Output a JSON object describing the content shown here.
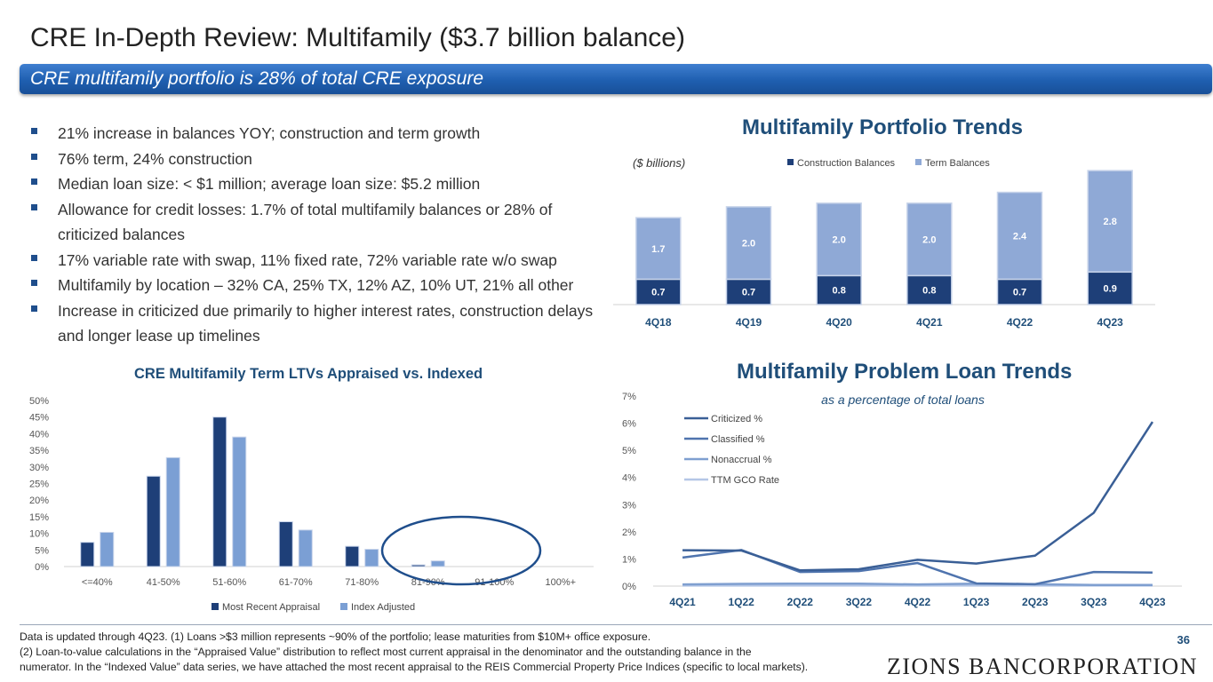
{
  "title": "CRE In-Depth Review: Multifamily ($3.7 billion balance)",
  "banner": "CRE multifamily portfolio is 28% of total CRE exposure",
  "bullets": [
    "21% increase in balances YOY; construction and term growth",
    "76% term, 24% construction",
    "Median loan size: < $1 million; average loan size: $5.2 million",
    "Allowance for credit losses: 1.7% of total multifamily balances or 28% of criticized balances",
    "17% variable rate with swap, 11% fixed rate, 72% variable rate w/o swap",
    "Multifamily by location – 32% CA, 25% TX, 12% AZ, 10% UT, 21% all other",
    "Increase in criticized due primarily to higher interest rates, construction delays and longer lease up timelines"
  ],
  "colors": {
    "navy": "#1f4e79",
    "construction": "#1e3f78",
    "term": "#8fa9d6",
    "banner": "#2a68be",
    "appraisal": "#1e3f78",
    "indexed": "#7b9fd4",
    "criticized": "#3a5f96",
    "classified": "#4f74ae",
    "nonaccrual": "#7f9fd0",
    "gco": "#b4c6e6",
    "circle": "#1f4e8c"
  },
  "chart_data": [
    {
      "id": "portfolio-trends",
      "type": "bar",
      "stacked": true,
      "title": "Multifamily Portfolio Trends",
      "subtitle": "($ billions)",
      "categories": [
        "4Q18",
        "4Q19",
        "4Q20",
        "4Q21",
        "4Q22",
        "4Q23"
      ],
      "series": [
        {
          "name": "Construction Balances",
          "values": [
            0.7,
            0.7,
            0.8,
            0.8,
            0.7,
            0.9
          ]
        },
        {
          "name": "Term Balances",
          "values": [
            1.7,
            2.0,
            2.0,
            2.0,
            2.4,
            2.8
          ]
        }
      ],
      "ylim": [
        0,
        3.8
      ],
      "legend": "top"
    },
    {
      "id": "ltv",
      "type": "bar",
      "title": "CRE Multifamily Term LTVs Appraised vs. Indexed",
      "categories": [
        "<=40%",
        "41-50%",
        "51-60%",
        "61-70%",
        "71-80%",
        "81-90%",
        "91-100%",
        "100%+"
      ],
      "series": [
        {
          "name": "Most Recent Appraisal",
          "values": [
            7.3,
            27.2,
            45.0,
            13.5,
            6.1,
            0.5,
            0.0,
            0.0
          ]
        },
        {
          "name": "Index Adjusted",
          "values": [
            10.3,
            32.8,
            39.0,
            11.0,
            5.2,
            1.7,
            0.0,
            0.0
          ]
        }
      ],
      "ylim": [
        0,
        50
      ],
      "yticks": [
        "0%",
        "5%",
        "10%",
        "15%",
        "20%",
        "25%",
        "30%",
        "35%",
        "40%",
        "45%",
        "50%"
      ],
      "legend": "bottom"
    },
    {
      "id": "problem-loans",
      "type": "line",
      "title": "Multifamily Problem Loan Trends",
      "subtitle": "as a percentage of total loans",
      "categories": [
        "4Q21",
        "1Q22",
        "2Q22",
        "3Q22",
        "4Q22",
        "1Q23",
        "2Q23",
        "3Q23",
        "4Q23"
      ],
      "series": [
        {
          "name": "Criticized %",
          "values": [
            1.32,
            1.31,
            0.58,
            0.62,
            0.97,
            0.83,
            1.12,
            2.7,
            6.05
          ]
        },
        {
          "name": "Classified %",
          "values": [
            1.05,
            1.33,
            0.52,
            0.55,
            0.85,
            0.1,
            0.07,
            0.52,
            0.5
          ]
        },
        {
          "name": "Nonaccrual %",
          "values": [
            0.06,
            0.08,
            0.09,
            0.09,
            0.06,
            0.09,
            0.07,
            0.04,
            0.04
          ]
        },
        {
          "name": "TTM GCO Rate",
          "values": [
            0.02,
            0.02,
            0.02,
            0.02,
            0.02,
            0.02,
            0.02,
            0.02,
            0.02
          ]
        }
      ],
      "ylim": [
        0,
        7
      ],
      "yticks": [
        "0%",
        "1%",
        "2%",
        "3%",
        "4%",
        "5%",
        "6%",
        "7%"
      ],
      "legend": "top-left"
    }
  ],
  "footnote": [
    "Data is updated through 4Q23. (1) Loans >$3 million represents ~90% of the portfolio; lease maturities from $10M+ office exposure.",
    "(2) Loan-to-value calculations in the “Appraised Value” distribution to reflect most current appraisal in the denominator and the outstanding balance in the",
    "numerator. In the “Indexed Value” data series, we have attached the most recent appraisal to the REIS Commercial Property Price Indices (specific to local markets)."
  ],
  "page_number": "36",
  "logo_text": "ZIONS BANCORPORATION"
}
